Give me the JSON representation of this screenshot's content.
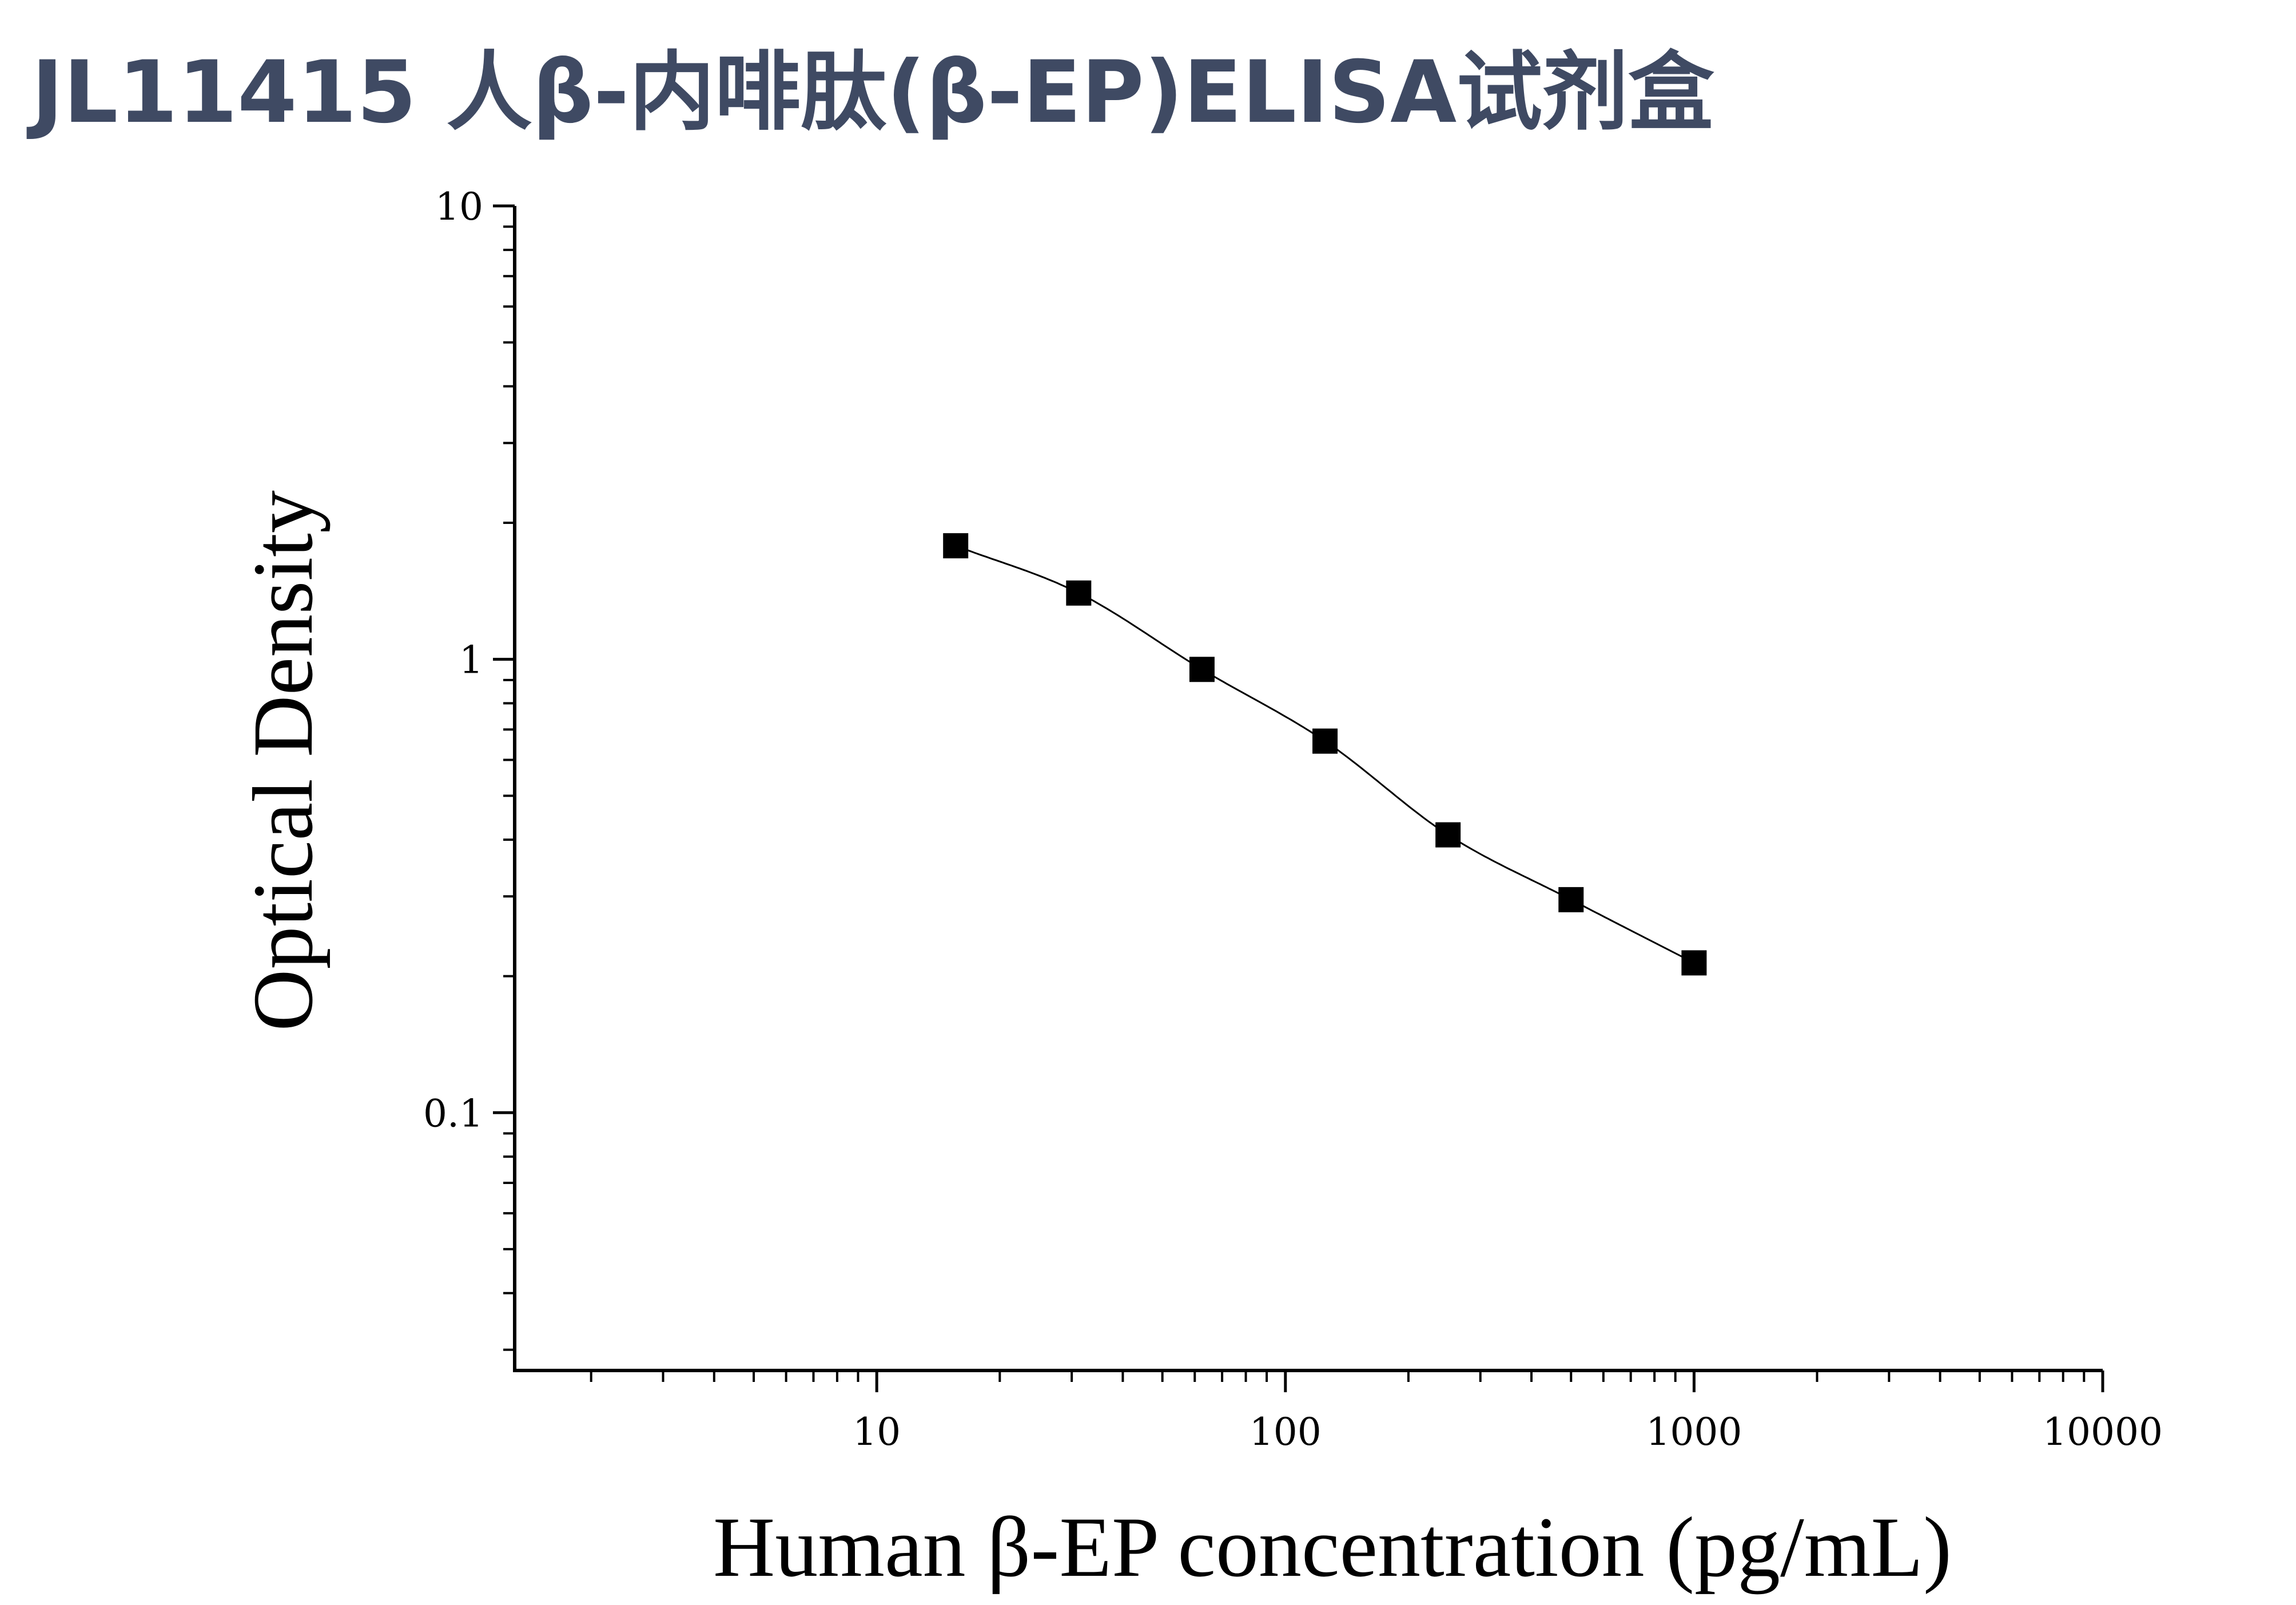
{
  "title": "JL11415 人β-内啡肽(β-EP)ELISA试剂盒",
  "chart_data": {
    "type": "scatter",
    "title": "",
    "xlabel": "Human β-EP concentration (pg/mL)",
    "ylabel": "Optical Density",
    "xscale": "log",
    "yscale": "log",
    "xlim": [
      1.3,
      10000
    ],
    "ylim": [
      0.027,
      10
    ],
    "x_tick_labels": [
      "10",
      "100",
      "1000",
      "10000"
    ],
    "x_ticks": [
      10,
      100,
      1000,
      10000
    ],
    "y_tick_labels": [
      "0.1",
      "1",
      "10"
    ],
    "y_ticks": [
      0.1,
      1,
      10
    ],
    "grid": false,
    "series": [
      {
        "x": [
          15.6,
          31.2,
          62.5,
          125,
          250,
          500,
          1000
        ],
        "y": [
          1.78,
          1.4,
          0.95,
          0.66,
          0.41,
          0.295,
          0.214
        ],
        "marker": "square",
        "fit_curve": true,
        "color": "#000000"
      }
    ]
  }
}
